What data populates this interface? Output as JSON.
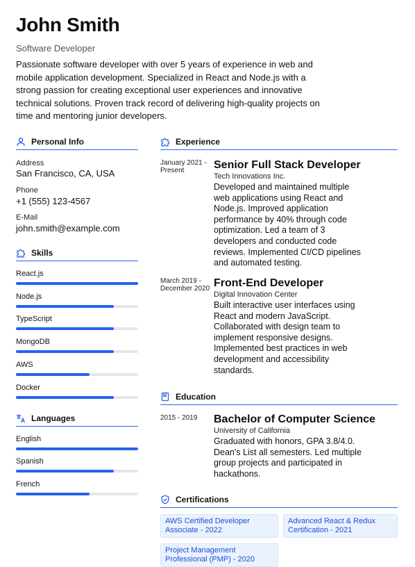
{
  "header": {
    "name": "John Smith",
    "role": "Software Developer",
    "summary": "Passionate software developer with over 5 years of experience in web and mobile application development. Specialized in React and Node.js with a strong passion for creating exceptional user experiences and innovative technical solutions. Proven track record of delivering high-quality projects on time and mentoring junior developers."
  },
  "colors": {
    "accent": "#2563eb",
    "track": "#e6e6e6",
    "cert_bg": "#eaf2fd",
    "cert_text": "#1d4ed8"
  },
  "personal_info": {
    "heading": "Personal Info",
    "icon": "user-icon",
    "address_label": "Address",
    "address": "San Francisco, CA, USA",
    "phone_label": "Phone",
    "phone": "+1 (555) 123-4567",
    "email_label": "E-Mail",
    "email": "john.smith@example.com"
  },
  "skills": {
    "heading": "Skills",
    "icon": "puzzle-icon",
    "items": [
      {
        "name": "React.js",
        "level": 1.0
      },
      {
        "name": "Node.js",
        "level": 0.8
      },
      {
        "name": "TypeScript",
        "level": 0.8
      },
      {
        "name": "MongoDB",
        "level": 0.8
      },
      {
        "name": "AWS",
        "level": 0.6
      },
      {
        "name": "Docker",
        "level": 0.8
      }
    ]
  },
  "languages": {
    "heading": "Languages",
    "icon": "translate-icon",
    "items": [
      {
        "name": "English",
        "level": 1.0
      },
      {
        "name": "Spanish",
        "level": 0.8
      },
      {
        "name": "French",
        "level": 0.6
      }
    ]
  },
  "experience": {
    "heading": "Experience",
    "icon": "puzzle-icon",
    "items": [
      {
        "date": "January 2021 - Present",
        "title": "Senior Full Stack Developer",
        "company": "Tech Innovations Inc.",
        "description": "Developed and maintained multiple web applications using React and Node.js. Improved application performance by 40% through code optimization. Led a team of 3 developers and conducted code reviews. Implemented CI/CD pipelines and automated testing."
      },
      {
        "date": "March 2019 - December 2020",
        "title": "Front-End Developer",
        "company": "Digital Innovation Center",
        "description": "Built interactive user interfaces using React and modern JavaScript. Collaborated with design team to implement responsive designs. Implemented best practices in web development and accessibility standards."
      }
    ]
  },
  "education": {
    "heading": "Education",
    "icon": "book-icon",
    "items": [
      {
        "date": "2015 - 2019",
        "degree": "Bachelor of Computer Science",
        "school": "University of California",
        "description": "Graduated with honors, GPA 3.8/4.0. Dean's List all semesters. Led multiple group projects and participated in hackathons."
      }
    ]
  },
  "certifications": {
    "heading": "Certifications",
    "icon": "shield-icon",
    "items": [
      "AWS Certified Developer Associate - 2022",
      "Advanced React & Redux Certification - 2021",
      "Project Management Professional (PMP) - 2020"
    ]
  }
}
